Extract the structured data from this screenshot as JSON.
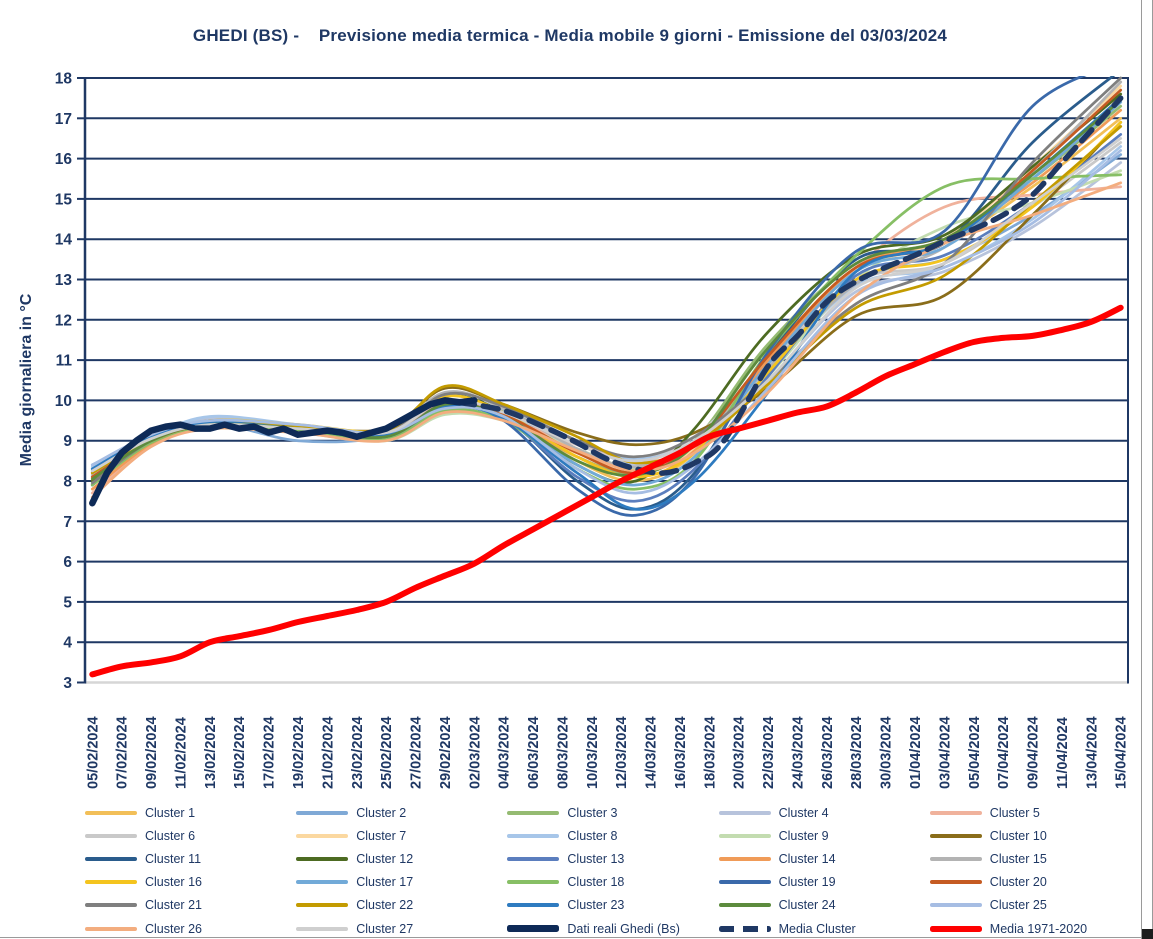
{
  "title": "GHEDI (BS) -    Previsione media termica - Media mobile 9 giorni - Emissione del 03/03/2024",
  "colors": {
    "navy_text": "#1F3864",
    "grid": "#1F3864",
    "bottom_axis": "#D6D6D6",
    "real_data": "#0E2A57",
    "cluster_mean": "#1F3864",
    "climate_mean": "#FF0000"
  },
  "chart_data": {
    "type": "line",
    "title": "GHEDI (BS) - Previsione media termica - Media mobile 9 giorni - Emissione del 03/03/2024",
    "xlabel": "",
    "ylabel": "Media giornaliera in °C",
    "ylim": [
      3,
      18
    ],
    "ytick_step": 1,
    "grid": "horizontal",
    "legend_position": "bottom",
    "x_unit": "days from 05/02/2024, 1 point per day",
    "x_days_total": 70,
    "x_tick_labels": [
      "05/02/2024",
      "07/02/2024",
      "09/02/2024",
      "11/02/2024",
      "13/02/2024",
      "15/02/2024",
      "17/02/2024",
      "19/02/2024",
      "21/02/2024",
      "23/02/2024",
      "25/02/2024",
      "27/02/2024",
      "29/02/2024",
      "02/03/2024",
      "04/03/2024",
      "06/03/2024",
      "08/03/2024",
      "10/03/2024",
      "12/03/2024",
      "14/03/2024",
      "16/03/2024",
      "18/03/2024",
      "20/03/2024",
      "22/03/2024",
      "24/03/2024",
      "26/03/2024",
      "28/03/2024",
      "30/03/2024",
      "01/04/2024",
      "03/04/2024",
      "05/04/2024",
      "07/04/2024",
      "09/04/2024",
      "11/04/2024",
      "13/04/2024",
      "15/04/2024"
    ],
    "anchor_days": [
      0,
      4,
      8,
      14,
      20,
      24,
      28,
      33,
      37,
      41,
      46,
      52,
      58,
      64,
      70
    ],
    "clusters": [
      {
        "label": "Cluster 1",
        "color": "#F2BF58",
        "values": [
          8.1,
          9.0,
          9.4,
          9.3,
          9.2,
          9.9,
          9.6,
          8.5,
          8.0,
          8.7,
          11.1,
          13.3,
          13.9,
          15.3,
          17.0
        ]
      },
      {
        "label": "Cluster 2",
        "color": "#7FA9D6",
        "values": [
          8.4,
          9.1,
          9.45,
          9.0,
          9.1,
          9.8,
          9.7,
          8.8,
          8.3,
          8.9,
          10.8,
          13.0,
          13.5,
          14.6,
          16.1
        ]
      },
      {
        "label": "Cluster 3",
        "color": "#95BB72",
        "values": [
          7.9,
          9.0,
          9.4,
          9.25,
          9.2,
          10.0,
          9.6,
          8.6,
          8.2,
          9.0,
          11.4,
          13.4,
          14.0,
          15.5,
          17.3
        ]
      },
      {
        "label": "Cluster 4",
        "color": "#B7C3DC",
        "values": [
          8.3,
          9.05,
          9.55,
          9.35,
          9.25,
          9.75,
          9.8,
          9.0,
          8.4,
          8.8,
          10.5,
          12.7,
          13.2,
          14.3,
          15.9
        ]
      },
      {
        "label": "Cluster 5",
        "color": "#F0B29C",
        "values": [
          7.7,
          8.9,
          9.3,
          9.2,
          9.1,
          9.7,
          9.55,
          8.9,
          8.5,
          8.85,
          10.9,
          13.3,
          14.8,
          15.1,
          15.3
        ]
      },
      {
        "label": "Cluster 6",
        "color": "#C9C9C9",
        "values": [
          8.0,
          9.0,
          9.45,
          9.3,
          9.15,
          9.85,
          9.7,
          9.0,
          8.6,
          9.1,
          10.9,
          12.95,
          13.4,
          14.8,
          16.4
        ]
      },
      {
        "label": "Cluster 7",
        "color": "#FBD8A0",
        "values": [
          8.2,
          9.0,
          9.35,
          9.25,
          9.05,
          9.7,
          9.5,
          8.7,
          8.3,
          8.8,
          11.0,
          13.2,
          14.0,
          15.8,
          17.8
        ]
      },
      {
        "label": "Cluster 8",
        "color": "#A7C6E9",
        "values": [
          8.35,
          9.1,
          9.6,
          9.4,
          9.2,
          9.9,
          9.75,
          9.0,
          8.55,
          9.0,
          10.7,
          12.85,
          13.3,
          14.5,
          16.3
        ]
      },
      {
        "label": "Cluster 9",
        "color": "#C3DCB0",
        "values": [
          8.1,
          8.95,
          9.3,
          9.2,
          9.0,
          9.65,
          9.5,
          8.8,
          8.3,
          8.7,
          10.6,
          13.0,
          14.3,
          14.9,
          15.7
        ]
      },
      {
        "label": "Cluster 10",
        "color": "#8A6D1A",
        "values": [
          8.0,
          9.05,
          9.45,
          9.35,
          9.3,
          10.3,
          9.9,
          9.2,
          8.9,
          9.2,
          10.3,
          12.1,
          12.6,
          14.6,
          16.9
        ]
      },
      {
        "label": "Cluster 11",
        "color": "#2A5C8C",
        "values": [
          7.9,
          9.0,
          9.4,
          9.25,
          9.1,
          9.9,
          9.6,
          8.0,
          7.3,
          8.2,
          11.1,
          13.5,
          13.9,
          16.4,
          18.2
        ]
      },
      {
        "label": "Cluster 12",
        "color": "#4D6B22",
        "values": [
          8.0,
          9.0,
          9.4,
          9.3,
          9.2,
          10.1,
          9.7,
          8.4,
          8.0,
          9.3,
          11.7,
          13.6,
          14.1,
          15.8,
          17.6
        ]
      },
      {
        "label": "Cluster 13",
        "color": "#5B7EBE",
        "values": [
          8.2,
          9.05,
          9.4,
          9.3,
          9.1,
          9.8,
          9.55,
          8.1,
          7.5,
          8.3,
          10.6,
          13.1,
          13.6,
          14.9,
          16.6
        ]
      },
      {
        "label": "Cluster 14",
        "color": "#F09B58",
        "values": [
          7.8,
          8.9,
          9.35,
          9.2,
          9.1,
          9.95,
          9.6,
          8.6,
          8.1,
          8.75,
          11.0,
          13.3,
          14.0,
          15.4,
          17.2
        ]
      },
      {
        "label": "Cluster 15",
        "color": "#B3B3B3",
        "values": [
          8.15,
          9.0,
          9.45,
          9.3,
          9.2,
          10.2,
          9.8,
          8.8,
          8.35,
          9.0,
          10.8,
          12.9,
          13.8,
          15.7,
          17.9
        ]
      },
      {
        "label": "Cluster 16",
        "color": "#F4C41E",
        "values": [
          8.05,
          9.0,
          9.5,
          9.4,
          9.25,
          10.1,
          9.7,
          8.6,
          8.1,
          8.7,
          10.7,
          13.0,
          13.5,
          14.8,
          16.9
        ]
      },
      {
        "label": "Cluster 17",
        "color": "#72AAD8",
        "values": [
          8.3,
          9.1,
          9.45,
          9.35,
          9.15,
          9.85,
          9.65,
          8.4,
          7.9,
          8.6,
          10.9,
          13.2,
          13.8,
          15.5,
          17.4
        ]
      },
      {
        "label": "Cluster 18",
        "color": "#87BF65",
        "values": [
          7.9,
          8.95,
          9.35,
          9.25,
          9.05,
          9.75,
          9.5,
          8.3,
          7.8,
          8.5,
          11.2,
          13.6,
          15.3,
          15.5,
          15.6
        ]
      },
      {
        "label": "Cluster 19",
        "color": "#3A69AA",
        "values": [
          8.25,
          9.1,
          9.4,
          9.3,
          9.1,
          9.9,
          9.5,
          7.8,
          7.15,
          8.1,
          11.2,
          13.7,
          14.2,
          17.3,
          18.4
        ]
      },
      {
        "label": "Cluster 20",
        "color": "#C55B22",
        "values": [
          8.1,
          9.0,
          9.4,
          9.3,
          9.2,
          10.0,
          9.65,
          8.7,
          8.2,
          8.9,
          11.1,
          13.3,
          13.9,
          15.7,
          17.7
        ]
      },
      {
        "label": "Cluster 21",
        "color": "#7F7F7F",
        "values": [
          7.95,
          9.0,
          9.45,
          9.3,
          9.2,
          10.15,
          9.85,
          9.0,
          8.6,
          9.1,
          10.5,
          12.4,
          13.4,
          15.9,
          18.0
        ]
      },
      {
        "label": "Cluster 22",
        "color": "#C39B00",
        "values": [
          8.2,
          9.05,
          9.5,
          9.35,
          9.25,
          10.35,
          9.9,
          9.1,
          8.45,
          8.9,
          10.4,
          12.3,
          13.1,
          14.9,
          16.8
        ]
      },
      {
        "label": "Cluster 23",
        "color": "#2E7BC0",
        "values": [
          8.3,
          9.1,
          9.45,
          9.3,
          9.15,
          9.85,
          9.55,
          8.2,
          7.3,
          8.0,
          10.2,
          13.2,
          13.9,
          15.6,
          17.5
        ]
      },
      {
        "label": "Cluster 24",
        "color": "#5C8B3D",
        "values": [
          8.05,
          9.0,
          9.4,
          9.3,
          9.1,
          9.9,
          9.6,
          8.5,
          8.15,
          8.9,
          11.3,
          13.4,
          14.0,
          15.6,
          17.45
        ]
      },
      {
        "label": "Cluster 25",
        "color": "#A6BDE3",
        "values": [
          8.4,
          9.15,
          9.5,
          9.4,
          9.2,
          9.8,
          9.6,
          8.3,
          7.7,
          8.4,
          10.3,
          12.6,
          13.3,
          14.4,
          16.2
        ]
      },
      {
        "label": "Cluster 26",
        "color": "#F3AD7F",
        "values": [
          7.6,
          8.85,
          9.3,
          9.2,
          9.0,
          9.7,
          9.5,
          8.75,
          8.25,
          8.7,
          10.2,
          12.6,
          13.9,
          14.6,
          15.4
        ]
      },
      {
        "label": "Cluster 27",
        "color": "#CFCFCF",
        "values": [
          8.25,
          9.05,
          9.4,
          9.3,
          9.2,
          10.0,
          9.7,
          8.9,
          8.5,
          9.0,
          10.5,
          12.8,
          13.4,
          14.9,
          16.5
        ]
      }
    ],
    "dati_reali": {
      "label": "Dati reali Ghedi (Bs)",
      "color": "#0E2A57",
      "days": [
        0,
        1,
        2,
        3,
        4,
        5,
        6,
        7,
        8,
        9,
        10,
        11,
        12,
        13,
        14,
        15,
        16,
        17,
        18,
        19,
        20,
        21,
        22,
        23,
        24,
        25,
        26
      ],
      "values": [
        7.45,
        8.2,
        8.7,
        9.0,
        9.25,
        9.35,
        9.4,
        9.3,
        9.3,
        9.4,
        9.3,
        9.35,
        9.2,
        9.3,
        9.15,
        9.2,
        9.25,
        9.2,
        9.1,
        9.2,
        9.3,
        9.5,
        9.7,
        9.9,
        10.0,
        9.95,
        10.0
      ]
    },
    "media_cluster": {
      "label": "Media Cluster",
      "color": "#1F3864",
      "days": [
        25,
        28,
        31,
        33,
        35,
        37,
        39,
        41,
        43,
        46,
        48,
        50,
        52,
        54,
        56,
        58,
        60,
        62,
        64,
        66,
        68,
        70
      ],
      "values": [
        9.95,
        9.75,
        9.3,
        8.95,
        8.55,
        8.3,
        8.2,
        8.45,
        9.0,
        10.85,
        11.6,
        12.45,
        12.95,
        13.3,
        13.6,
        13.95,
        14.25,
        14.6,
        15.1,
        15.9,
        16.7,
        17.5
      ]
    },
    "media_1971_2020": {
      "label": "Media 1971-2020",
      "color": "#FF0000",
      "days": [
        0,
        2,
        4,
        6,
        8,
        10,
        12,
        14,
        16,
        18,
        20,
        22,
        24,
        26,
        28,
        30,
        32,
        34,
        36,
        38,
        40,
        42,
        44,
        46,
        48,
        50,
        52,
        54,
        56,
        58,
        60,
        62,
        64,
        66,
        68,
        70
      ],
      "values": [
        3.2,
        3.4,
        3.5,
        3.65,
        4.0,
        4.15,
        4.3,
        4.5,
        4.65,
        4.8,
        5.0,
        5.35,
        5.65,
        5.95,
        6.4,
        6.8,
        7.2,
        7.6,
        8.0,
        8.35,
        8.7,
        9.1,
        9.3,
        9.5,
        9.7,
        9.85,
        10.2,
        10.6,
        10.9,
        11.2,
        11.45,
        11.55,
        11.6,
        11.75,
        11.95,
        12.3
      ]
    }
  }
}
